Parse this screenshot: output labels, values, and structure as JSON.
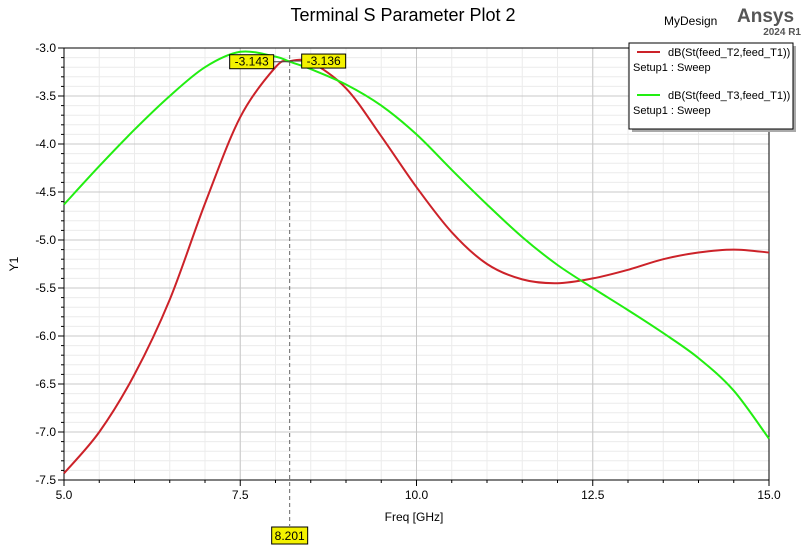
{
  "design_name": "MyDesign",
  "brand": {
    "name": "Ansys",
    "version": "2024 R1"
  },
  "chart_data": {
    "type": "line",
    "title": "Terminal S Parameter Plot 2",
    "xlabel": "Freq [GHz]",
    "ylabel": "Y1",
    "xlim": [
      5.0,
      15.0
    ],
    "ylim": [
      -7.5,
      -3.0
    ],
    "x_ticks": [
      "5.0",
      "7.5",
      "10.0",
      "12.5",
      "15.0"
    ],
    "y_ticks": [
      "-3.0",
      "-3.5",
      "-4.0",
      "-4.5",
      "-5.0",
      "-5.5",
      "-6.0",
      "-6.5",
      "-7.0",
      "-7.5"
    ],
    "grid": true,
    "legend_position": "top-right",
    "series": [
      {
        "name": "dB(St(feed_T2,feed_T1))",
        "setup": "Setup1 : Sweep",
        "color": "#cc2229",
        "points": [
          [
            5.0,
            -7.43
          ],
          [
            5.5,
            -7.0
          ],
          [
            6.0,
            -6.4
          ],
          [
            6.5,
            -5.62
          ],
          [
            7.0,
            -4.62
          ],
          [
            7.5,
            -3.72
          ],
          [
            8.0,
            -3.2
          ],
          [
            8.201,
            -3.136
          ],
          [
            8.5,
            -3.15
          ],
          [
            9.0,
            -3.42
          ],
          [
            9.5,
            -3.92
          ],
          [
            10.0,
            -4.45
          ],
          [
            10.5,
            -4.92
          ],
          [
            11.0,
            -5.25
          ],
          [
            11.5,
            -5.41
          ],
          [
            12.0,
            -5.45
          ],
          [
            12.5,
            -5.4
          ],
          [
            13.0,
            -5.31
          ],
          [
            13.5,
            -5.2
          ],
          [
            14.0,
            -5.13
          ],
          [
            14.5,
            -5.1
          ],
          [
            15.0,
            -5.13
          ]
        ]
      },
      {
        "name": "dB(St(feed_T3,feed_T1))",
        "setup": "Setup1 : Sweep",
        "color": "#22ee11",
        "points": [
          [
            5.0,
            -4.63
          ],
          [
            5.5,
            -4.23
          ],
          [
            6.0,
            -3.85
          ],
          [
            6.5,
            -3.5
          ],
          [
            7.0,
            -3.2
          ],
          [
            7.5,
            -3.04
          ],
          [
            8.0,
            -3.09
          ],
          [
            8.201,
            -3.143
          ],
          [
            8.5,
            -3.22
          ],
          [
            9.0,
            -3.38
          ],
          [
            9.5,
            -3.6
          ],
          [
            10.0,
            -3.9
          ],
          [
            10.5,
            -4.27
          ],
          [
            11.0,
            -4.63
          ],
          [
            11.5,
            -4.97
          ],
          [
            12.0,
            -5.26
          ],
          [
            12.5,
            -5.5
          ],
          [
            13.0,
            -5.73
          ],
          [
            13.5,
            -5.97
          ],
          [
            14.0,
            -6.23
          ],
          [
            14.5,
            -6.57
          ],
          [
            15.0,
            -7.07
          ]
        ]
      }
    ],
    "marker": {
      "x": 8.201,
      "x_label": "8.201",
      "values": [
        {
          "series": 1,
          "y": -3.143,
          "label": "-3.143"
        },
        {
          "series": 0,
          "y": -3.136,
          "label": "-3.136"
        }
      ]
    }
  }
}
